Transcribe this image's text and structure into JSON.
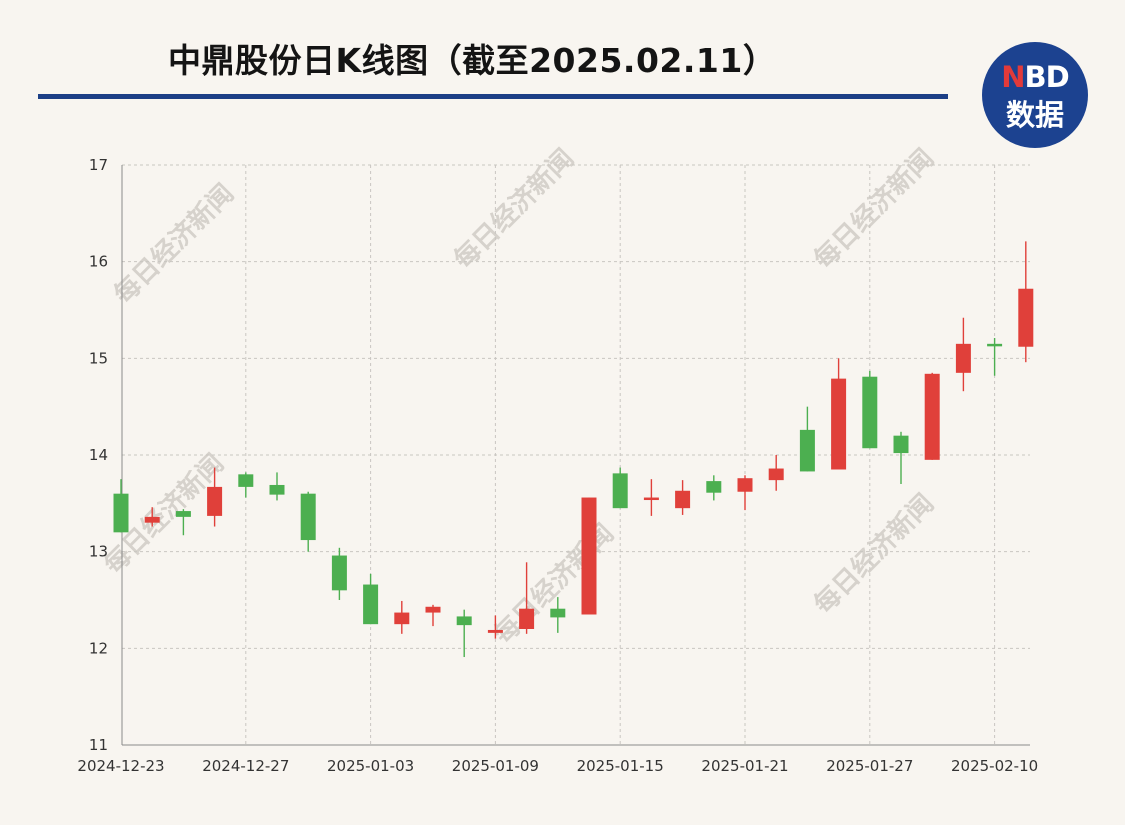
{
  "title": "中鼎股份日K线图（截至2025.02.11）",
  "logo": {
    "n": "N",
    "bd": "BD",
    "sub": "数据"
  },
  "watermark": "每日经济新闻",
  "colors": {
    "up": "#e0403a",
    "down": "#4caf50",
    "rule": "#1c3f86",
    "logo": "#1c4290"
  },
  "chart_data": {
    "type": "candlestick",
    "ylim": [
      11,
      17
    ],
    "yticks": [
      11,
      12,
      13,
      14,
      15,
      16,
      17
    ],
    "xtick_labels": [
      "2024-12-23",
      "2024-12-27",
      "2025-01-03",
      "2025-01-09",
      "2025-01-15",
      "2025-01-21",
      "2025-01-27",
      "2025-02-10"
    ],
    "xtick_index": [
      0,
      4,
      8,
      12,
      16,
      20,
      24,
      28
    ],
    "grid": true,
    "candles": [
      {
        "open": 13.6,
        "close": 13.2,
        "high": 13.75,
        "low": 13.2
      },
      {
        "open": 13.3,
        "close": 13.36,
        "high": 13.46,
        "low": 13.26
      },
      {
        "open": 13.42,
        "close": 13.36,
        "high": 13.44,
        "low": 13.17
      },
      {
        "open": 13.37,
        "close": 13.67,
        "high": 13.87,
        "low": 13.26
      },
      {
        "open": 13.8,
        "close": 13.67,
        "high": 13.82,
        "low": 13.56
      },
      {
        "open": 13.69,
        "close": 13.59,
        "high": 13.82,
        "low": 13.53
      },
      {
        "open": 13.6,
        "close": 13.12,
        "high": 13.62,
        "low": 13.0
      },
      {
        "open": 12.96,
        "close": 12.6,
        "high": 13.04,
        "low": 12.5
      },
      {
        "open": 12.66,
        "close": 12.25,
        "high": 12.77,
        "low": 12.25
      },
      {
        "open": 12.25,
        "close": 12.37,
        "high": 12.49,
        "low": 12.15
      },
      {
        "open": 12.37,
        "close": 12.43,
        "high": 12.45,
        "low": 12.23
      },
      {
        "open": 12.33,
        "close": 12.24,
        "high": 12.4,
        "low": 11.91
      },
      {
        "open": 12.16,
        "close": 12.19,
        "high": 12.34,
        "low": 12.1
      },
      {
        "open": 12.2,
        "close": 12.41,
        "high": 12.89,
        "low": 12.15
      },
      {
        "open": 12.41,
        "close": 12.32,
        "high": 12.53,
        "low": 12.16
      },
      {
        "open": 12.35,
        "close": 13.56,
        "high": 13.56,
        "low": 12.35
      },
      {
        "open": 13.81,
        "close": 13.45,
        "high": 13.87,
        "low": 13.45
      },
      {
        "open": 13.55,
        "close": 13.56,
        "high": 13.75,
        "low": 13.37
      },
      {
        "open": 13.45,
        "close": 13.63,
        "high": 13.74,
        "low": 13.38
      },
      {
        "open": 13.73,
        "close": 13.61,
        "high": 13.79,
        "low": 13.53
      },
      {
        "open": 13.62,
        "close": 13.76,
        "high": 13.79,
        "low": 13.43
      },
      {
        "open": 13.74,
        "close": 13.86,
        "high": 14.0,
        "low": 13.63
      },
      {
        "open": 14.26,
        "close": 13.83,
        "high": 14.5,
        "low": 13.83
      },
      {
        "open": 13.85,
        "close": 14.79,
        "high": 15.0,
        "low": 13.85
      },
      {
        "open": 14.81,
        "close": 14.07,
        "high": 14.87,
        "low": 14.07
      },
      {
        "open": 14.2,
        "close": 14.02,
        "high": 14.24,
        "low": 13.7
      },
      {
        "open": 13.95,
        "close": 14.84,
        "high": 14.85,
        "low": 13.95
      },
      {
        "open": 14.85,
        "close": 15.15,
        "high": 15.42,
        "low": 14.66
      },
      {
        "open": 15.15,
        "close": 15.13,
        "high": 15.21,
        "low": 14.82
      },
      {
        "open": 15.12,
        "close": 15.72,
        "high": 16.21,
        "low": 14.96
      }
    ]
  }
}
